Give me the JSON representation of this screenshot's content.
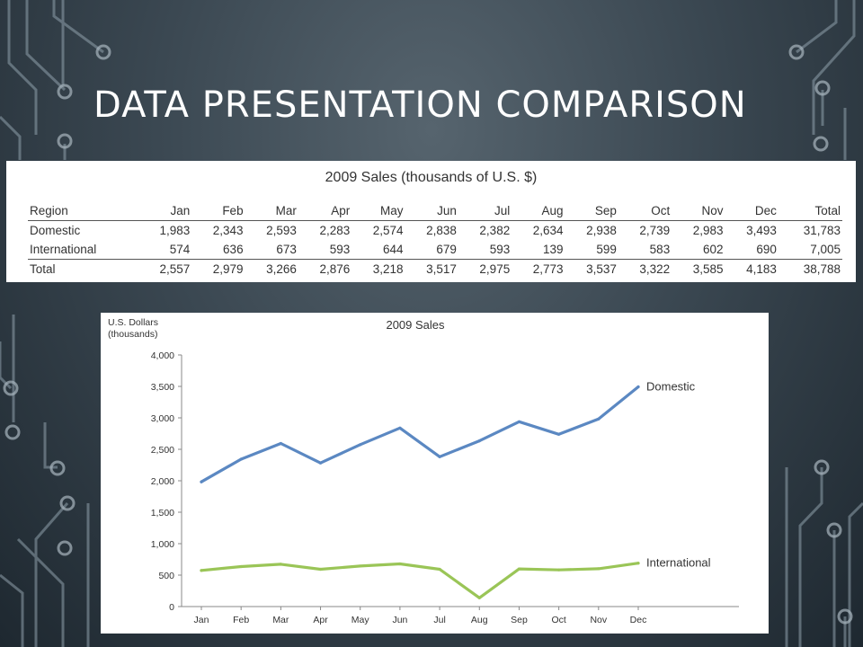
{
  "slide": {
    "title": "DATA PRESENTATION COMPARISON"
  },
  "table": {
    "title": "2009 Sales (thousands of U.S. $)",
    "headers": [
      "Region",
      "Jan",
      "Feb",
      "Mar",
      "Apr",
      "May",
      "Jun",
      "Jul",
      "Aug",
      "Sep",
      "Oct",
      "Nov",
      "Dec",
      "Total"
    ],
    "rows": [
      [
        "Domestic",
        "1,983",
        "2,343",
        "2,593",
        "2,283",
        "2,574",
        "2,838",
        "2,382",
        "2,634",
        "2,938",
        "2,739",
        "2,983",
        "3,493",
        "31,783"
      ],
      [
        "International",
        "574",
        "636",
        "673",
        "593",
        "644",
        "679",
        "593",
        "139",
        "599",
        "583",
        "602",
        "690",
        "7,005"
      ],
      [
        "Total",
        "2,557",
        "2,979",
        "3,266",
        "2,876",
        "3,218",
        "3,517",
        "2,975",
        "2,773",
        "3,537",
        "3,322",
        "3,585",
        "4,183",
        "38,788"
      ]
    ]
  },
  "chart_data": {
    "type": "line",
    "title": "2009 Sales",
    "ylabel": [
      "U.S. Dollars",
      "(thousands)"
    ],
    "xlabel": "",
    "categories": [
      "Jan",
      "Feb",
      "Mar",
      "Apr",
      "May",
      "Jun",
      "Jul",
      "Aug",
      "Sep",
      "Oct",
      "Nov",
      "Dec"
    ],
    "ylim": [
      0,
      4000
    ],
    "yticks": [
      "4,000",
      "3,500",
      "3,000",
      "2,500",
      "2,000",
      "1,500",
      "1,000",
      "500",
      "0"
    ],
    "ytick_values": [
      4000,
      3500,
      3000,
      2500,
      2000,
      1500,
      1000,
      500,
      0
    ],
    "grid": false,
    "series": [
      {
        "name": "Domestic",
        "color": "#5b88c2",
        "values": [
          1983,
          2343,
          2593,
          2283,
          2574,
          2838,
          2382,
          2634,
          2938,
          2739,
          2983,
          3493
        ]
      },
      {
        "name": "International",
        "color": "#9ac557",
        "values": [
          574,
          636,
          673,
          593,
          644,
          679,
          593,
          139,
          599,
          583,
          602,
          690
        ]
      }
    ]
  }
}
